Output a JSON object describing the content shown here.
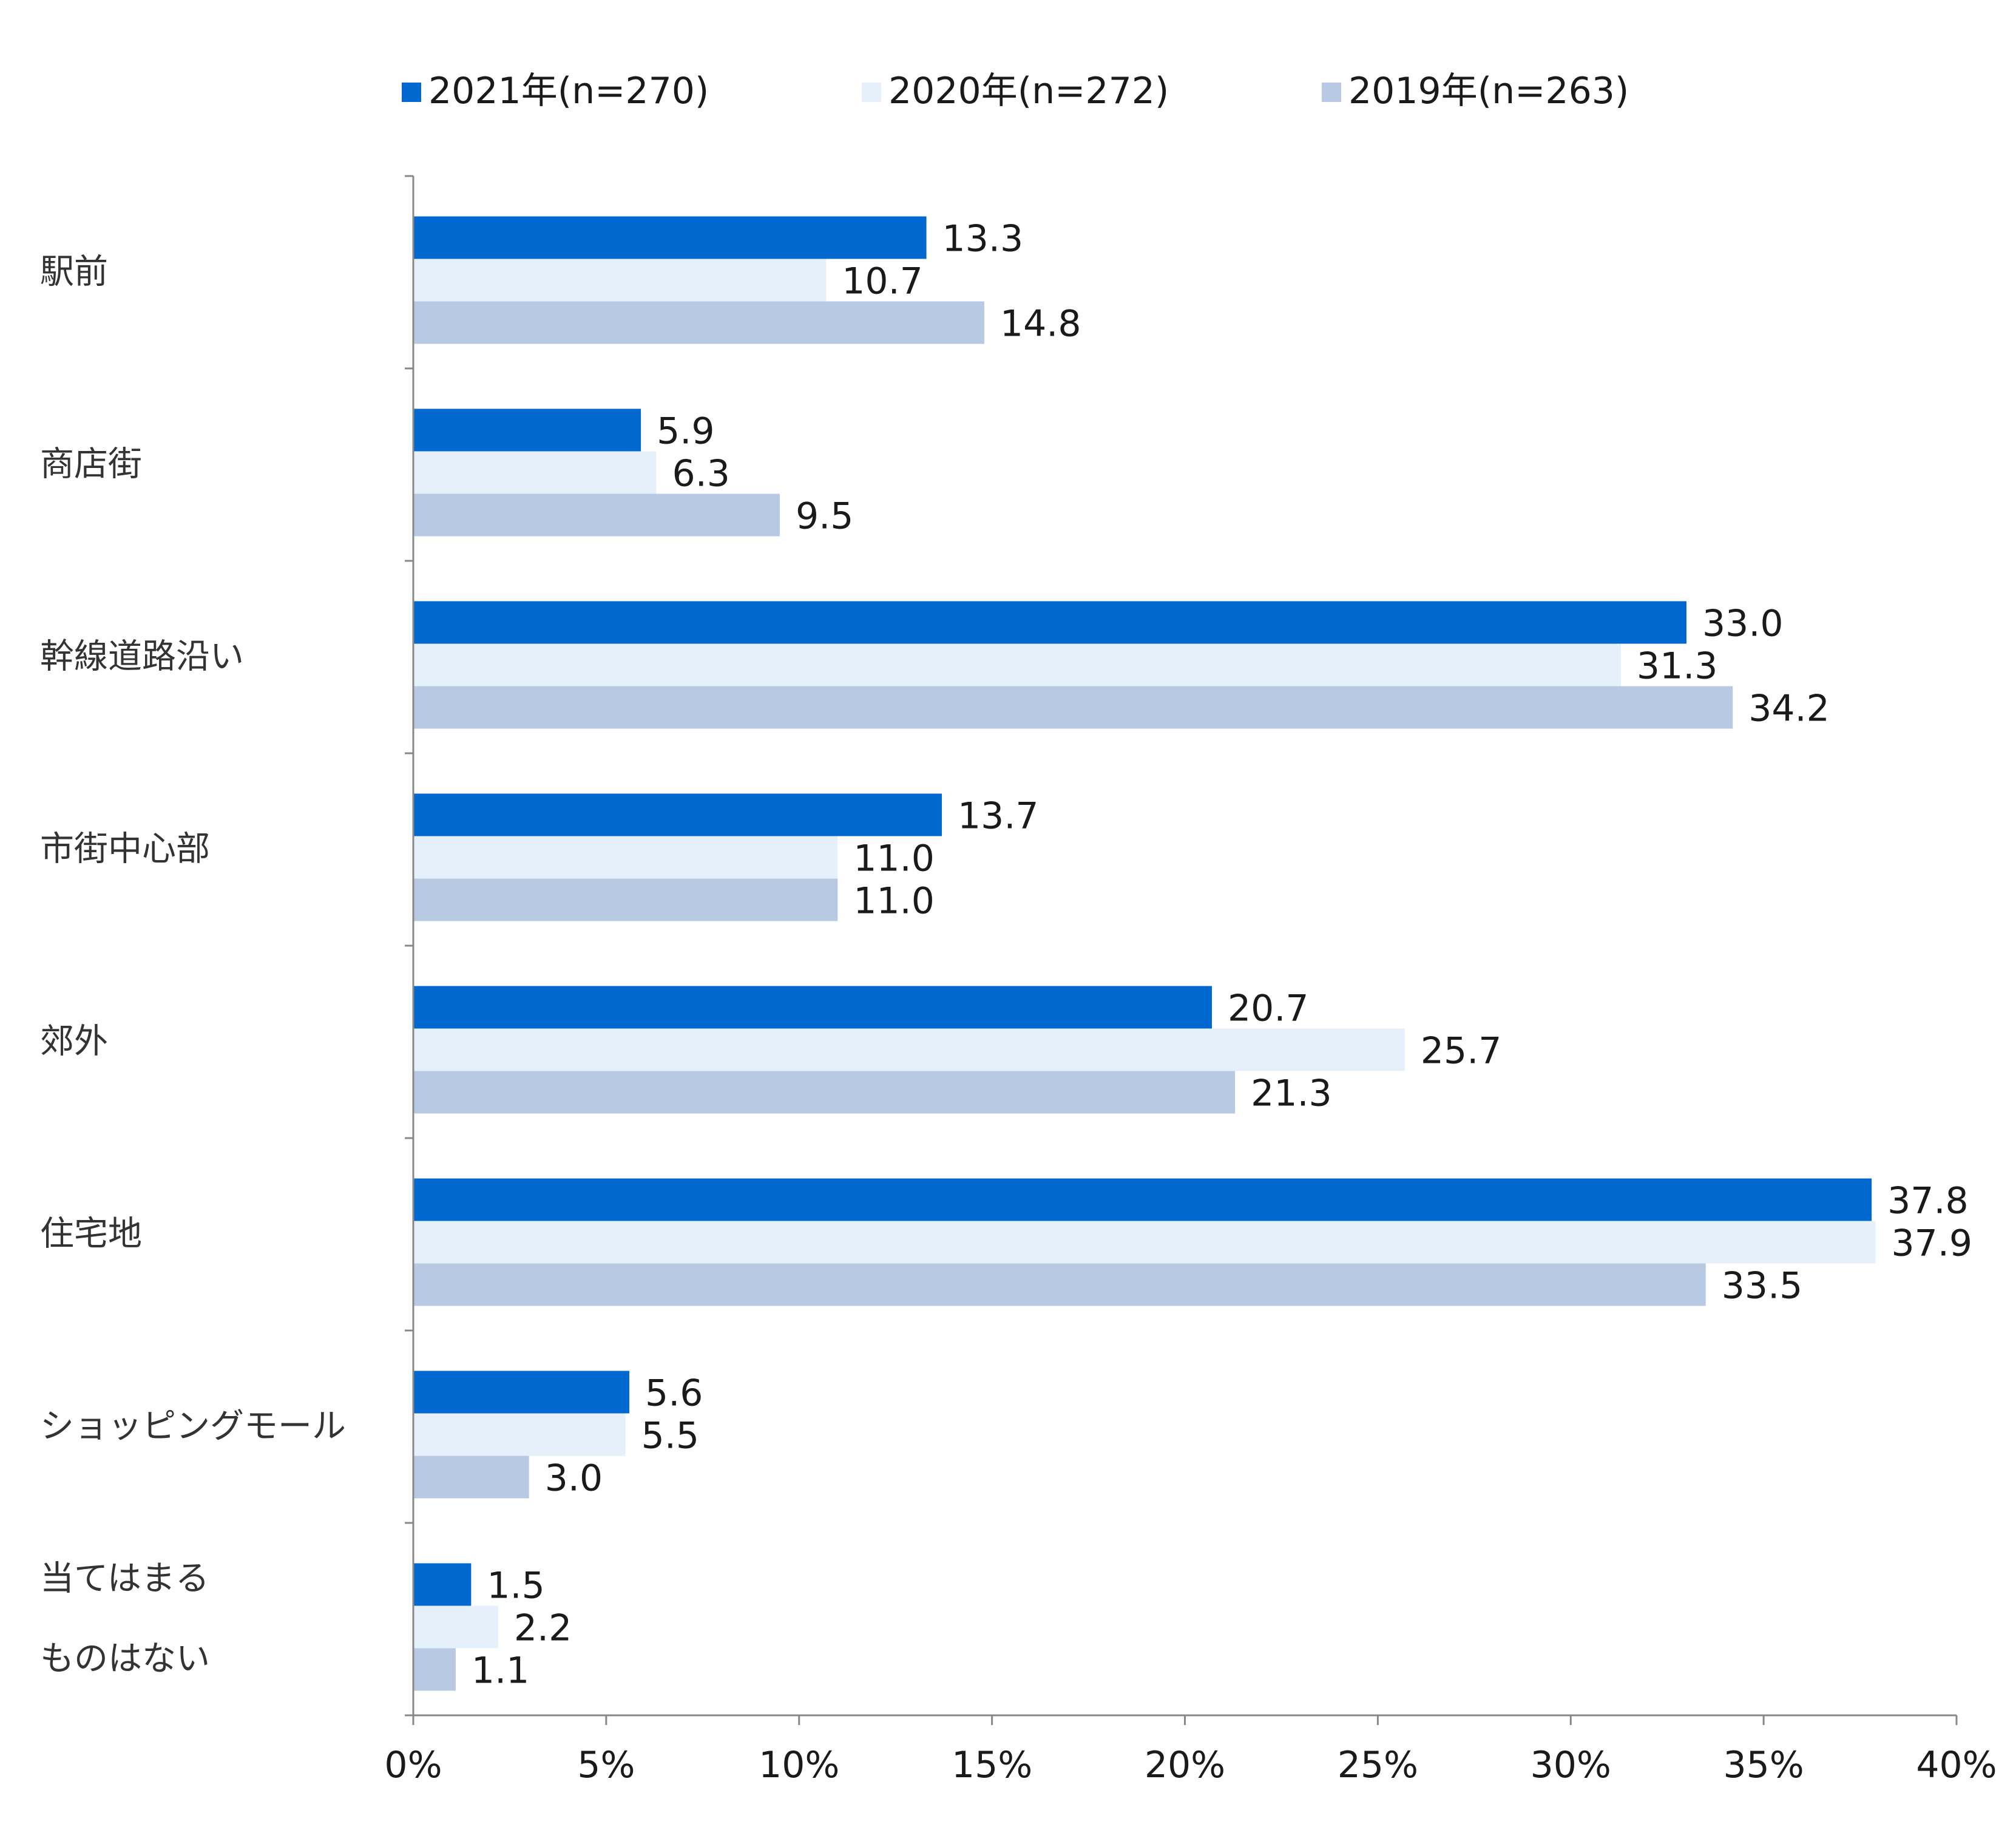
{
  "chart_data": {
    "type": "bar",
    "orientation": "horizontal",
    "title": "",
    "xlabel": "",
    "ylabel": "",
    "xlim": [
      0,
      40
    ],
    "ticks": [
      "0%",
      "5%",
      "10%",
      "15%",
      "20%",
      "25%",
      "30%",
      "35%",
      "40%"
    ],
    "tick_values": [
      0,
      5,
      10,
      15,
      20,
      25,
      30,
      35,
      40
    ],
    "grid": false,
    "legend_position": "top",
    "categories": [
      [
        "駅前"
      ],
      [
        "商店街"
      ],
      [
        "幹線道路沿い"
      ],
      [
        "市街中心部"
      ],
      [
        "郊外"
      ],
      [
        "住宅地"
      ],
      [
        "ショッピングモール"
      ],
      [
        "当てはまる",
        "ものはない"
      ]
    ],
    "series": [
      {
        "name": "2021年(n=270)",
        "color": "#0068CE",
        "values": [
          13.3,
          5.9,
          33.0,
          13.7,
          20.7,
          37.8,
          5.6,
          1.5
        ],
        "labels": [
          "13.3",
          "5.9",
          "33.0",
          "13.7",
          "20.7",
          "37.8",
          "5.6",
          "1.5"
        ]
      },
      {
        "name": "2020年(n=272)",
        "color": "#E6F0FA",
        "values": [
          10.7,
          6.3,
          31.3,
          11.0,
          25.7,
          37.9,
          5.5,
          2.2
        ],
        "labels": [
          "10.7",
          "6.3",
          "31.3",
          "11.0",
          "25.7",
          "37.9",
          "5.5",
          "2.2"
        ]
      },
      {
        "name": "2019年(n=263)",
        "color": "#B8CAE3",
        "values": [
          14.8,
          9.5,
          34.2,
          11.0,
          21.3,
          33.5,
          3.0,
          1.1
        ],
        "labels": [
          "14.8",
          "9.5",
          "34.2",
          "11.0",
          "21.3",
          "33.5",
          "3.0",
          "1.1"
        ]
      }
    ]
  }
}
